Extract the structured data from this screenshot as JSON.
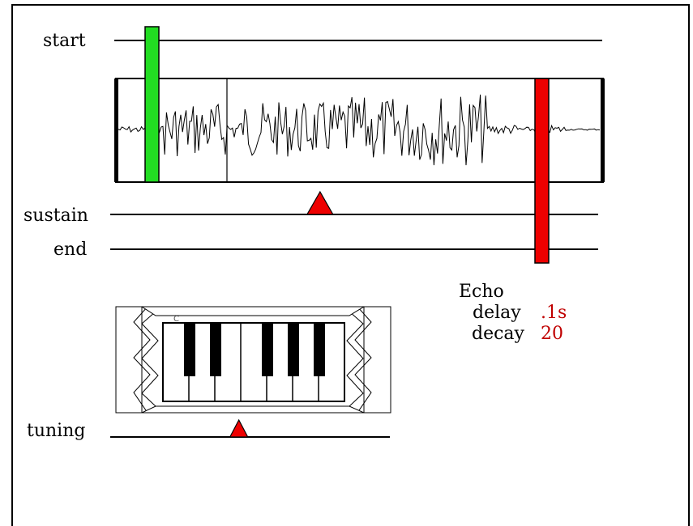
{
  "sliders": {
    "start_label": "start",
    "sustain_label": "sustain",
    "end_label": "end",
    "tuning_label": "tuning",
    "start_value": 0.06,
    "sustain_value": 0.43,
    "end_value": 0.87,
    "tuning_value": 0.46,
    "start_color": "#22dd22",
    "end_color": "#ee0000",
    "marker_color": "#ee0000"
  },
  "echo": {
    "title": "Echo",
    "delay_label": "delay",
    "delay_value": ".1s",
    "decay_label": "decay",
    "decay_value": "20",
    "value_color": "#c00000"
  },
  "keyboard": {
    "start_note": "C",
    "white_keys": 7,
    "black_keys": 5
  },
  "icons": {
    "waveform": "waveform-display",
    "keyboard": "piano-keyboard-icon"
  }
}
